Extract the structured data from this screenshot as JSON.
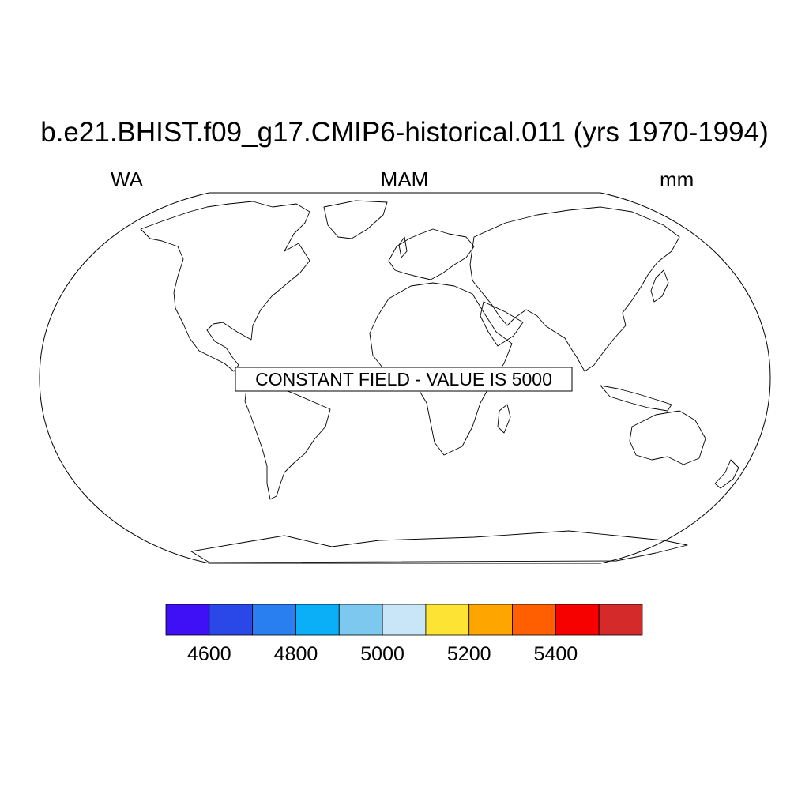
{
  "plot": {
    "title": "b.e21.BHIST.f09_g17.CMIP6-historical.011 (yrs 1970-1994)",
    "left_subtitle": "WA",
    "center_subtitle": "MAM",
    "right_subtitle": "mm",
    "annotation": "CONSTANT FIELD - VALUE IS 5000"
  },
  "map": {
    "projection": "robinson",
    "fill": "none",
    "coastline_color": "#000000"
  },
  "colorbar": {
    "colors": [
      "#3f0ff5",
      "#2a48e8",
      "#2a7ff0",
      "#0aaff8",
      "#7cc8ee",
      "#c8e6f8",
      "#fde333",
      "#ffa500",
      "#ff5f00",
      "#f70000",
      "#d42a2a"
    ],
    "tick_labels": [
      "4600",
      "4800",
      "5000",
      "5200",
      "5400"
    ]
  }
}
